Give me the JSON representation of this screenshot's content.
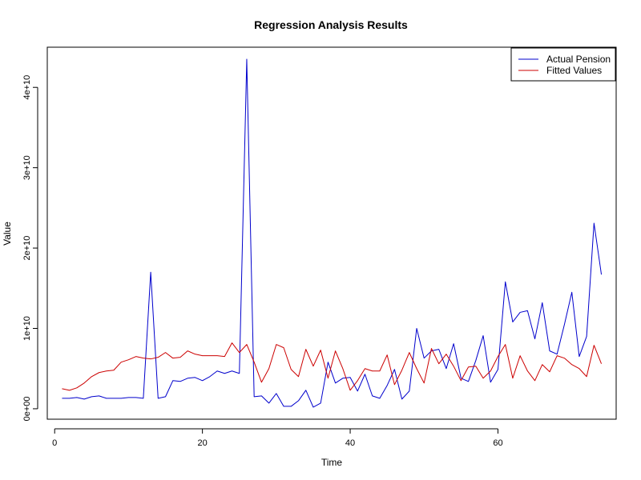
{
  "chart_data": {
    "type": "line",
    "title": "Regression Analysis Results",
    "xlabel": "Time",
    "ylabel": "Value",
    "xlim": [
      -1,
      76
    ],
    "ylim": [
      -1300000000.0,
      45000000000.0
    ],
    "x_ticks": [
      {
        "value": 0,
        "label": "0"
      },
      {
        "value": 20,
        "label": "20"
      },
      {
        "value": 40,
        "label": "40"
      },
      {
        "value": 60,
        "label": "60"
      }
    ],
    "y_ticks": [
      {
        "value": 0,
        "label": "0e+00"
      },
      {
        "value": 10000000000,
        "label": "1e+10"
      },
      {
        "value": 20000000000,
        "label": "2e+10"
      },
      {
        "value": 30000000000,
        "label": "3e+10"
      },
      {
        "value": 40000000000,
        "label": "4e+10"
      }
    ],
    "legend_position": "top-right",
    "x": [
      1,
      2,
      3,
      4,
      5,
      6,
      7,
      8,
      9,
      10,
      11,
      12,
      13,
      14,
      15,
      16,
      17,
      18,
      19,
      20,
      21,
      22,
      23,
      24,
      25,
      26,
      27,
      28,
      29,
      30,
      31,
      32,
      33,
      34,
      35,
      36,
      37,
      38,
      39,
      40,
      41,
      42,
      43,
      44,
      45,
      46,
      47,
      48,
      49,
      50,
      51,
      52,
      53,
      54,
      55,
      56,
      57,
      58,
      59,
      60,
      61,
      62,
      63,
      64,
      65,
      66,
      67,
      68,
      69,
      70,
      71,
      72,
      73,
      74
    ],
    "series": [
      {
        "name": "Actual Pension",
        "color": "#0000cc",
        "values": [
          1300000000.0,
          1300000000.0,
          1400000000.0,
          1200000000.0,
          1500000000.0,
          1600000000.0,
          1300000000.0,
          1300000000.0,
          1300000000.0,
          1400000000.0,
          1400000000.0,
          1300000000.0,
          17000000000.0,
          1300000000.0,
          1500000000.0,
          3500000000.0,
          3400000000.0,
          3800000000.0,
          3900000000.0,
          3500000000.0,
          4000000000.0,
          4700000000.0,
          4400000000.0,
          4700000000.0,
          4400000000.0,
          43500000000.0,
          1500000000.0,
          1600000000.0,
          700000000.0,
          1900000000.0,
          300000000.0,
          300000000.0,
          1000000000.0,
          2300000000.0,
          200000000.0,
          700000000.0,
          5800000000.0,
          3200000000.0,
          3800000000.0,
          3900000000.0,
          2200000000.0,
          4300000000.0,
          1600000000.0,
          1300000000.0,
          2900000000.0,
          4900000000.0,
          1200000000.0,
          2200000000.0,
          10000000000.0,
          6300000000.0,
          7200000000.0,
          7400000000.0,
          5000000000.0,
          8100000000.0,
          3800000000.0,
          3400000000.0,
          6000000000.0,
          9100000000.0,
          3300000000.0,
          4900000000.0,
          15800000000.0,
          10800000000.0,
          12000000000.0,
          12200000000.0,
          8700000000.0,
          13200000000.0,
          7200000000.0,
          6800000000.0,
          10500000000.0,
          14500000000.0,
          6500000000.0,
          9000000000.0,
          23100000000.0,
          16700000000.0
        ]
      },
      {
        "name": "Fitted Values",
        "color": "#cc0000",
        "values": [
          2500000000.0,
          2300000000.0,
          2600000000.0,
          3200000000.0,
          4000000000.0,
          4500000000.0,
          4700000000.0,
          4800000000.0,
          5800000000.0,
          6100000000.0,
          6500000000.0,
          6300000000.0,
          6200000000.0,
          6400000000.0,
          7000000000.0,
          6300000000.0,
          6400000000.0,
          7200000000.0,
          6800000000.0,
          6600000000.0,
          6600000000.0,
          6600000000.0,
          6500000000.0,
          8200000000.0,
          7000000000.0,
          8000000000.0,
          5800000000.0,
          3300000000.0,
          5000000000.0,
          8000000000.0,
          7600000000.0,
          4900000000.0,
          4000000000.0,
          7400000000.0,
          5300000000.0,
          7300000000.0,
          3800000000.0,
          7200000000.0,
          5000000000.0,
          2300000000.0,
          3500000000.0,
          5000000000.0,
          4700000000.0,
          4700000000.0,
          6700000000.0,
          3000000000.0,
          4800000000.0,
          7000000000.0,
          5000000000.0,
          3200000000.0,
          7500000000.0,
          5600000000.0,
          6800000000.0,
          5300000000.0,
          3500000000.0,
          5200000000.0,
          5300000000.0,
          3800000000.0,
          4700000000.0,
          6500000000.0,
          8000000000.0,
          3800000000.0,
          6600000000.0,
          4700000000.0,
          3500000000.0,
          5500000000.0,
          4600000000.0,
          6600000000.0,
          6300000000.0,
          5500000000.0,
          5000000000.0,
          4000000000.0,
          7900000000.0,
          5600000000.0
        ]
      }
    ]
  }
}
